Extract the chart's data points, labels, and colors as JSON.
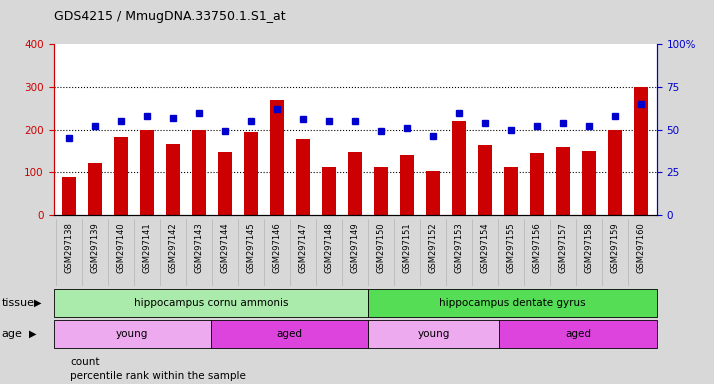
{
  "title": "GDS4215 / MmugDNA.33750.1.S1_at",
  "categories": [
    "GSM297138",
    "GSM297139",
    "GSM297140",
    "GSM297141",
    "GSM297142",
    "GSM297143",
    "GSM297144",
    "GSM297145",
    "GSM297146",
    "GSM297147",
    "GSM297148",
    "GSM297149",
    "GSM297150",
    "GSM297151",
    "GSM297152",
    "GSM297153",
    "GSM297154",
    "GSM297155",
    "GSM297156",
    "GSM297157",
    "GSM297158",
    "GSM297159",
    "GSM297160"
  ],
  "counts": [
    90,
    122,
    182,
    200,
    167,
    200,
    148,
    195,
    270,
    178,
    113,
    148,
    113,
    140,
    103,
    220,
    163,
    112,
    145,
    160,
    150,
    200,
    300
  ],
  "percentiles": [
    45,
    52,
    55,
    58,
    57,
    60,
    49,
    55,
    62,
    56,
    55,
    55,
    49,
    51,
    46,
    60,
    54,
    50,
    52,
    54,
    52,
    58,
    65
  ],
  "bar_color": "#cc0000",
  "dot_color": "#0000cc",
  "ylim_left": [
    0,
    400
  ],
  "ylim_right": [
    0,
    100
  ],
  "yticks_left": [
    0,
    100,
    200,
    300,
    400
  ],
  "yticks_right": [
    0,
    25,
    50,
    75,
    100
  ],
  "tissue_groups": [
    {
      "label": "hippocampus cornu ammonis",
      "start": 0,
      "end": 12,
      "color": "#aaeaaa"
    },
    {
      "label": "hippocampus dentate gyrus",
      "start": 12,
      "end": 23,
      "color": "#55dd55"
    }
  ],
  "age_groups": [
    {
      "label": "young",
      "start": 0,
      "end": 6,
      "color": "#eeaaee"
    },
    {
      "label": "aged",
      "start": 6,
      "end": 12,
      "color": "#dd44dd"
    },
    {
      "label": "young",
      "start": 12,
      "end": 17,
      "color": "#eeaaee"
    },
    {
      "label": "aged",
      "start": 17,
      "end": 23,
      "color": "#dd44dd"
    }
  ],
  "tissue_label": "tissue",
  "age_label": "age",
  "legend_count": "count",
  "legend_pct": "percentile rank within the sample",
  "bg_color": "#d8d8d8",
  "plot_bg": "#ffffff",
  "tick_label_color_left": "#cc0000",
  "tick_label_color_right": "#0000cc"
}
